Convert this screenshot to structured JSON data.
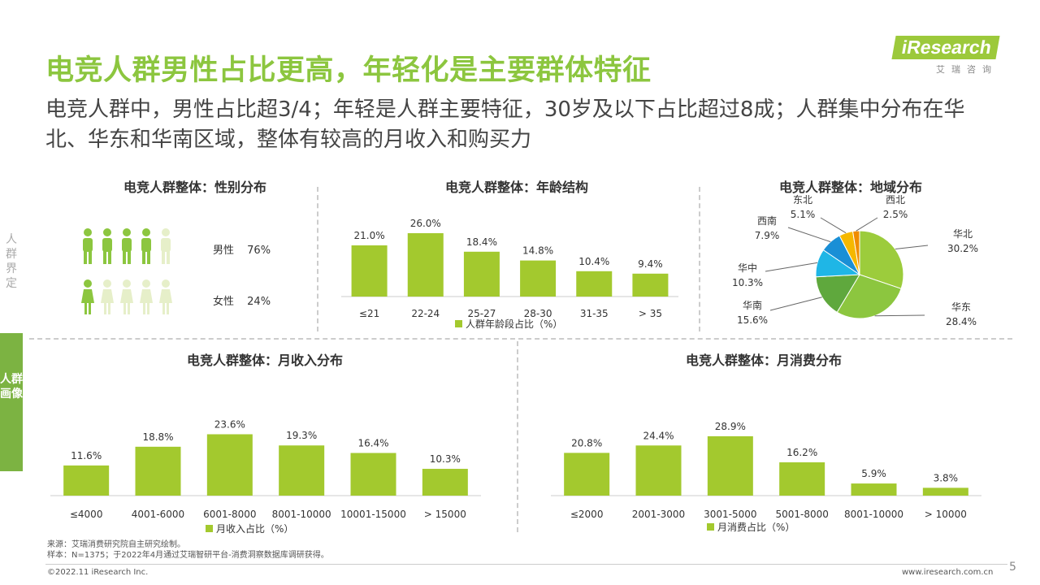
{
  "header": {
    "title": "电竞人群男性占比更高，年轻化是主要群体特征",
    "subtitle": "电竞人群中，男性占比超3/4；年轻是人群主要特征，30岁及以下占比超过8成；人群集中分布在华北、华东和华南区域，整体有较高的月收入和购买力"
  },
  "logo": {
    "main": "iResearch",
    "sub": "艾瑞咨询"
  },
  "side_tabs": {
    "upper": "人群界定",
    "lower": "人群画像"
  },
  "colors": {
    "accent": "#8cc63f",
    "bar": "#a3c92e",
    "icon_light": "#e6efc9"
  },
  "panels": {
    "gender": {
      "title": "电竞人群整体：性别分布",
      "male_label": "男性",
      "male_value": "76%",
      "female_label": "女性",
      "female_value": "24%"
    },
    "age": {
      "title": "电竞人群整体：年龄结构",
      "legend": "人群年龄段占比（%）"
    },
    "region": {
      "title": "电竞人群整体：地域分布"
    },
    "income": {
      "title": "电竞人群整体：月收入分布",
      "legend": "月收入占比（%）"
    },
    "spend": {
      "title": "电竞人群整体：月消费分布",
      "legend": "月消费占比（%）"
    }
  },
  "chart_data": [
    {
      "id": "gender",
      "type": "pictograph",
      "categories": [
        "男性",
        "女性"
      ],
      "values": [
        76,
        24
      ],
      "unit": "%"
    },
    {
      "id": "age",
      "type": "bar",
      "title": "电竞人群整体：年龄结构",
      "categories": [
        "≤21",
        "22-24",
        "25-27",
        "28-30",
        "31-35",
        "> 35"
      ],
      "values": [
        21.0,
        26.0,
        18.4,
        14.8,
        10.4,
        9.4
      ],
      "labels": [
        "21.0%",
        "26.0%",
        "18.4%",
        "14.8%",
        "10.4%",
        "9.4%"
      ],
      "legend": "人群年龄段占比（%）",
      "ylim": [
        0,
        30
      ]
    },
    {
      "id": "region",
      "type": "pie",
      "title": "电竞人群整体：地域分布",
      "slices": [
        {
          "name": "华北",
          "value": 30.2,
          "label": "30.2%",
          "color": "#9ccc3c"
        },
        {
          "name": "华东",
          "value": 28.4,
          "label": "28.4%",
          "color": "#8cc63f"
        },
        {
          "name": "华南",
          "value": 15.6,
          "label": "15.6%",
          "color": "#5fa83d"
        },
        {
          "name": "华中",
          "value": 10.3,
          "label": "10.3%",
          "color": "#1fb6e6"
        },
        {
          "name": "西南",
          "value": 7.9,
          "label": "7.9%",
          "color": "#1a8fd6"
        },
        {
          "name": "东北",
          "value": 5.1,
          "label": "5.1%",
          "color": "#f5b800"
        },
        {
          "name": "西北",
          "value": 2.5,
          "label": "2.5%",
          "color": "#f08c00"
        }
      ]
    },
    {
      "id": "income",
      "type": "bar",
      "title": "电竞人群整体：月收入分布",
      "categories": [
        "≤4000",
        "4001-6000",
        "6001-8000",
        "8001-10000",
        "10001-15000",
        "> 15000"
      ],
      "values": [
        11.6,
        18.8,
        23.6,
        19.3,
        16.4,
        10.3
      ],
      "labels": [
        "11.6%",
        "18.8%",
        "23.6%",
        "19.3%",
        "16.4%",
        "10.3%"
      ],
      "legend": "月收入占比（%）",
      "ylim": [
        0,
        30
      ]
    },
    {
      "id": "spend",
      "type": "bar",
      "title": "电竞人群整体：月消费分布",
      "categories": [
        "≤2000",
        "2001-3000",
        "3001-5000",
        "5001-8000",
        "8001-10000",
        "> 10000"
      ],
      "values": [
        20.8,
        24.4,
        28.9,
        16.2,
        5.9,
        3.8
      ],
      "labels": [
        "20.8%",
        "24.4%",
        "28.9%",
        "16.2%",
        "5.9%",
        "3.8%"
      ],
      "legend": "月消费占比（%）",
      "ylim": [
        0,
        34
      ]
    }
  ],
  "footer": {
    "source": "来源：艾瑞消费研究院自主研究绘制。",
    "sample": "样本：N=1375；于2022年4月通过艾瑞智研平台-消费洞察数据库调研获得。",
    "copyright": "©2022.11 iResearch Inc.",
    "website": "www.iresearch.com.cn",
    "page_number": "5"
  }
}
